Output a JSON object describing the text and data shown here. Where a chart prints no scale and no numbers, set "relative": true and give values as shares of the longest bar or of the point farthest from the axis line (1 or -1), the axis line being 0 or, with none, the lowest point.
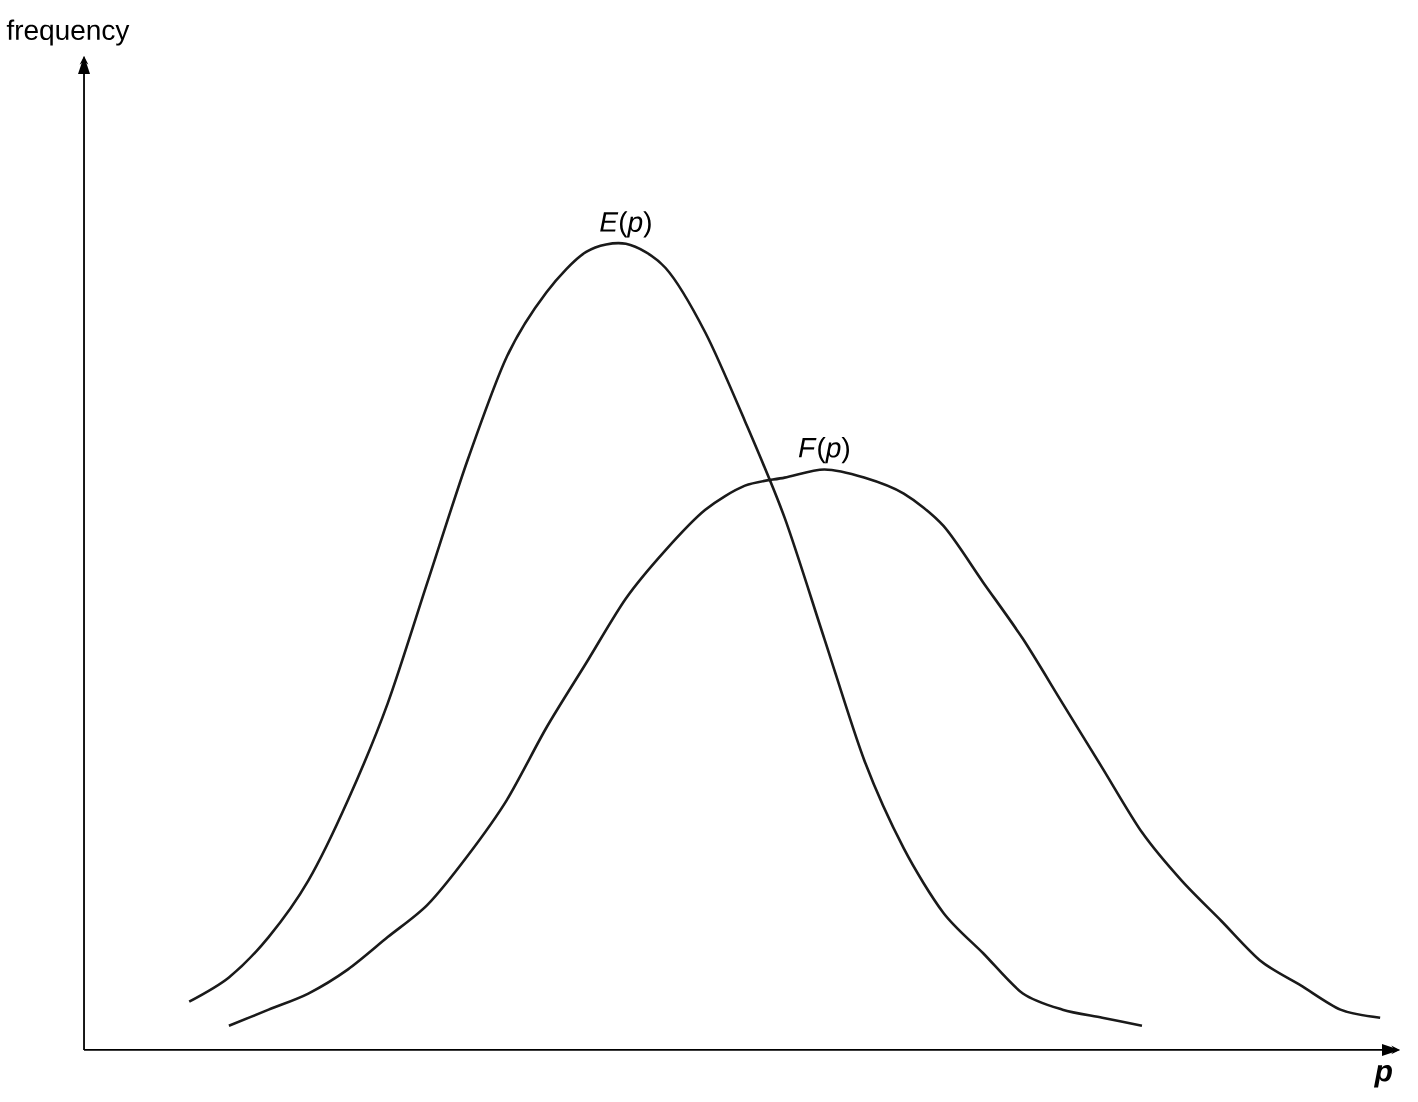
{
  "chart_data": {
    "type": "line",
    "relative": true,
    "xlabel": "p",
    "annotations": [
      "frequency"
    ],
    "categories": [
      null,
      null,
      null,
      null,
      null,
      null,
      null,
      null,
      null,
      null,
      null,
      null,
      null,
      null,
      null,
      null,
      null,
      null,
      null,
      null,
      null,
      null,
      null,
      null,
      null,
      null,
      null,
      null,
      null,
      null,
      null
    ],
    "series": [
      {
        "name": "*E*(*p*)",
        "color": "#1a1a1a",
        "values": [
          0.06,
          0.09,
          0.14,
          0.21,
          0.31,
          0.43,
          0.58,
          0.73,
          0.86,
          0.94,
          0.99,
          1.0,
          0.97,
          0.89,
          0.78,
          0.66,
          0.51,
          0.36,
          0.25,
          0.17,
          0.12,
          0.07,
          0.05,
          0.04,
          0.03,
          null,
          null,
          null,
          null,
          null,
          null
        ]
      },
      {
        "name": "*F*(*p*)",
        "color": "#1a1a1a",
        "values": [
          null,
          0.03,
          0.05,
          0.07,
          0.1,
          0.14,
          0.18,
          0.24,
          0.31,
          0.4,
          0.48,
          0.56,
          0.62,
          0.67,
          0.7,
          0.71,
          0.72,
          0.71,
          0.69,
          0.65,
          0.58,
          0.51,
          0.43,
          0.35,
          0.27,
          0.21,
          0.16,
          0.11,
          0.08,
          0.05,
          0.04
        ]
      }
    ]
  }
}
